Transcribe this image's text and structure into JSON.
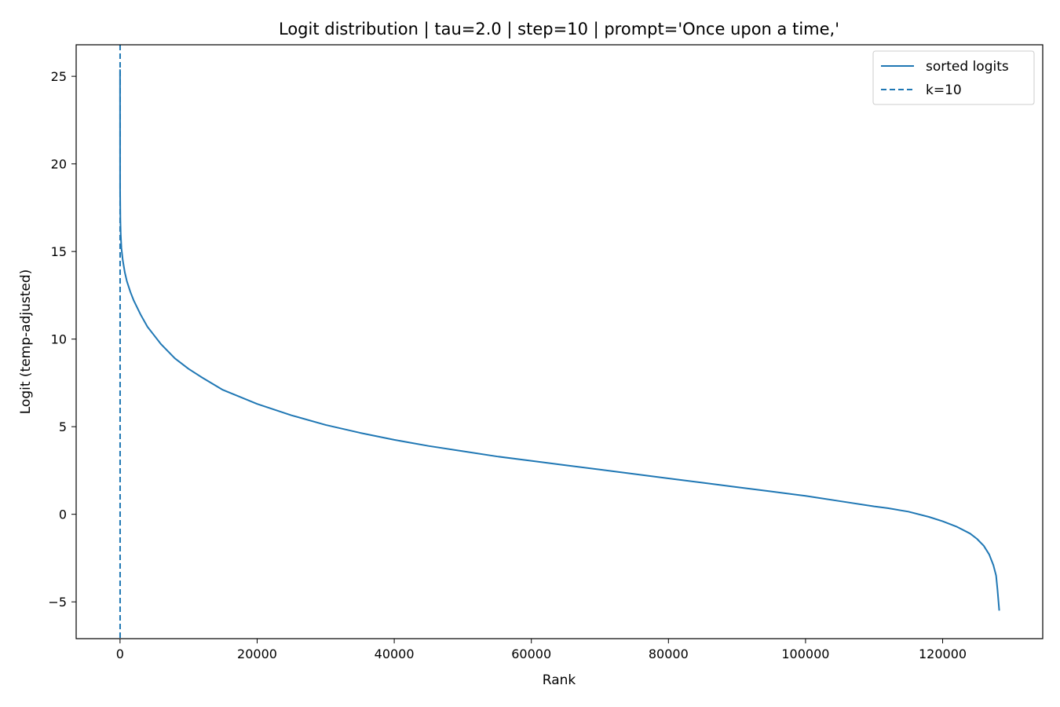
{
  "chart_data": {
    "type": "line",
    "title": "Logit distribution | tau=2.0 | step=10 | prompt='Once upon a time,'",
    "xlabel": "Rank",
    "ylabel": "Logit (temp-adjusted)",
    "xlim": [
      -6400,
      134600
    ],
    "ylim": [
      -7.1,
      26.8
    ],
    "xticks": [
      0,
      20000,
      40000,
      60000,
      80000,
      100000,
      120000
    ],
    "yticks": [
      -5,
      0,
      5,
      10,
      15,
      20,
      25
    ],
    "grid": false,
    "legend_position": "top-right",
    "series": [
      {
        "name": "sorted logits",
        "color": "#1f77b4",
        "style": "solid",
        "x": [
          0,
          10,
          50,
          100,
          200,
          400,
          700,
          1000,
          1500,
          2000,
          3000,
          4000,
          5000,
          6000,
          8000,
          10000,
          12000,
          15000,
          20000,
          25000,
          30000,
          35000,
          40000,
          45000,
          50000,
          55000,
          60000,
          65000,
          70000,
          75000,
          80000,
          85000,
          90000,
          95000,
          100000,
          105000,
          110000,
          112000,
          115000,
          118000,
          120000,
          122000,
          124000,
          125000,
          126000,
          126800,
          127400,
          127800,
          128000,
          128150,
          128256
        ],
        "y": [
          25.4,
          18.5,
          16.8,
          16.0,
          15.2,
          14.5,
          13.8,
          13.3,
          12.7,
          12.2,
          11.4,
          10.7,
          10.2,
          9.7,
          8.9,
          8.3,
          7.8,
          7.1,
          6.3,
          5.65,
          5.1,
          4.65,
          4.25,
          3.9,
          3.6,
          3.3,
          3.05,
          2.8,
          2.55,
          2.3,
          2.05,
          1.8,
          1.55,
          1.3,
          1.05,
          0.75,
          0.45,
          0.35,
          0.15,
          -0.15,
          -0.4,
          -0.7,
          -1.1,
          -1.4,
          -1.8,
          -2.3,
          -2.9,
          -3.5,
          -4.3,
          -5.0,
          -5.5
        ]
      },
      {
        "name": "k=10",
        "color": "#1f77b4",
        "style": "dashed",
        "x_value": 10
      }
    ]
  }
}
